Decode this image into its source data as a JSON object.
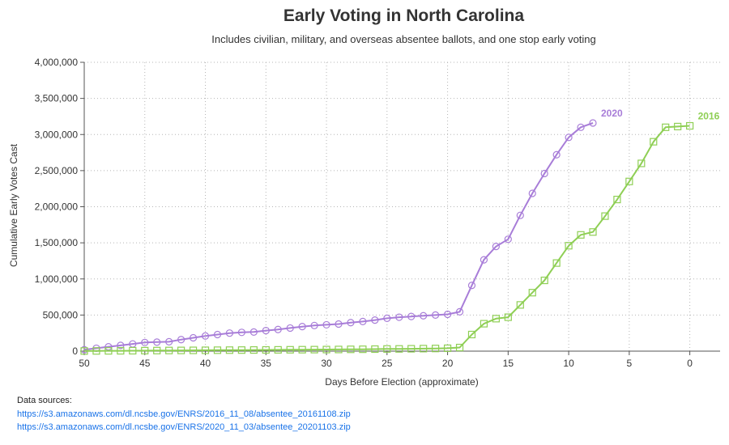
{
  "chart_data": {
    "type": "line",
    "title": "Early Voting in North Carolina",
    "subtitle": "Includes civilian, military, and overseas absentee ballots, and one stop early voting",
    "xlabel": "Days Before Election (approximate)",
    "ylabel": "Cumulative Early Votes Cast",
    "xlim": [
      50,
      -2.5
    ],
    "ylim": [
      0,
      4000000
    ],
    "xticks": [
      50,
      45,
      40,
      35,
      30,
      25,
      20,
      15,
      10,
      5,
      0
    ],
    "xtick_labels": [
      "50",
      "45",
      "40",
      "35",
      "30",
      "25",
      "20",
      "15",
      "10",
      "5",
      "0"
    ],
    "yticks": [
      0,
      500000,
      1000000,
      1500000,
      2000000,
      2500000,
      3000000,
      3500000,
      4000000
    ],
    "ytick_labels": [
      "0",
      "500,000",
      "1,000,000",
      "1,500,000",
      "2,000,000",
      "2,500,000",
      "3,000,000",
      "3,500,000",
      "4,000,000"
    ],
    "grid": true,
    "series": [
      {
        "name": "2020",
        "color": "#a87dd8",
        "marker": "circle",
        "x": [
          50,
          49,
          48,
          47,
          46,
          45,
          44,
          43,
          42,
          41,
          40,
          39,
          38,
          37,
          36,
          35,
          34,
          33,
          32,
          31,
          30,
          29,
          28,
          27,
          26,
          25,
          24,
          23,
          22,
          21,
          20,
          19,
          18,
          17,
          16,
          15,
          14,
          13,
          12,
          11,
          10,
          9,
          8
        ],
        "values": [
          20000,
          40000,
          60000,
          80000,
          100000,
          120000,
          125000,
          130000,
          160000,
          185000,
          210000,
          230000,
          250000,
          260000,
          265000,
          285000,
          300000,
          320000,
          340000,
          355000,
          365000,
          375000,
          395000,
          410000,
          430000,
          455000,
          470000,
          480000,
          490000,
          500000,
          510000,
          545000,
          910000,
          1265000,
          1450000,
          1550000,
          1880000,
          2185000,
          2460000,
          2720000,
          2960000,
          3100000,
          3160000
        ]
      },
      {
        "name": "2016",
        "color": "#8fcf55",
        "marker": "square",
        "x": [
          50,
          49,
          48,
          47,
          46,
          45,
          44,
          43,
          42,
          41,
          40,
          39,
          38,
          37,
          36,
          35,
          34,
          33,
          32,
          31,
          30,
          29,
          28,
          27,
          26,
          25,
          24,
          23,
          22,
          21,
          20,
          19,
          18,
          17,
          16,
          15,
          14,
          13,
          12,
          11,
          10,
          9,
          8,
          7,
          6,
          5,
          4,
          3,
          2,
          1,
          0
        ],
        "values": [
          2000,
          3000,
          4000,
          5000,
          6000,
          7000,
          8000,
          9000,
          10000,
          11000,
          12000,
          13000,
          14000,
          15000,
          16000,
          17000,
          18000,
          19000,
          20000,
          21000,
          22000,
          23000,
          25000,
          26000,
          28000,
          30000,
          31000,
          33000,
          35000,
          37000,
          40000,
          50000,
          230000,
          380000,
          450000,
          470000,
          640000,
          810000,
          980000,
          1220000,
          1460000,
          1610000,
          1650000,
          1870000,
          2100000,
          2350000,
          2600000,
          2900000,
          3100000,
          3110000,
          3120000
        ]
      }
    ]
  },
  "sources": {
    "label": "Data sources:",
    "links": [
      "https://s3.amazonaws.com/dl.ncsbe.gov/ENRS/2016_11_08/absentee_20161108.zip",
      "https://s3.amazonaws.com/dl.ncsbe.gov/ENRS/2020_11_03/absentee_20201103.zip"
    ]
  }
}
